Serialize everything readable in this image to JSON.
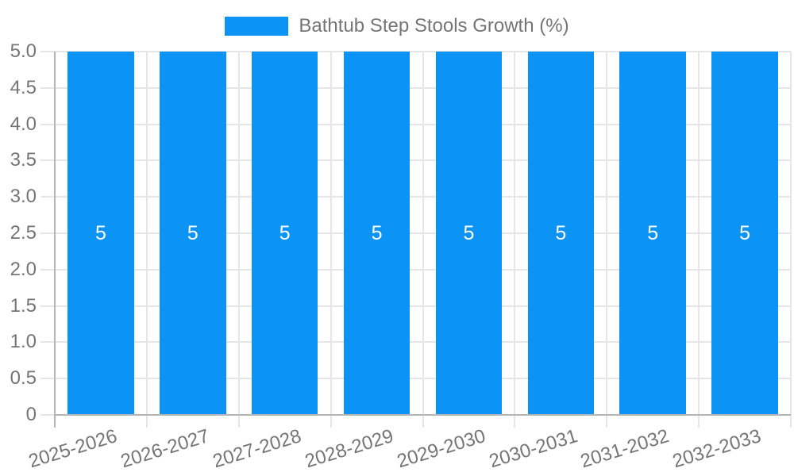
{
  "chart_data": {
    "type": "bar",
    "title": "",
    "legend": {
      "position": "top",
      "label": "Bathtub Step Stools Growth (%)"
    },
    "categories": [
      "2025-2026",
      "2026-2027",
      "2027-2028",
      "2028-2029",
      "2029-2030",
      "2030-2031",
      "2031-2032",
      "2032-2033"
    ],
    "series": [
      {
        "name": "Bathtub Step Stools Growth (%)",
        "values": [
          5,
          5,
          5,
          5,
          5,
          5,
          5,
          5
        ]
      }
    ],
    "value_labels": [
      "5",
      "5",
      "5",
      "5",
      "5",
      "5",
      "5",
      "5"
    ],
    "xlabel": "",
    "ylabel": "",
    "ylim": [
      0,
      5
    ],
    "ytick_step": 0.5,
    "y_tick_labels": [
      "0",
      "0.5",
      "1.0",
      "1.5",
      "2.0",
      "2.5",
      "3.0",
      "3.5",
      "4.0",
      "4.5",
      "5.0"
    ],
    "grid": true,
    "colors": {
      "bar": "#0b94f6",
      "axis": "#b5b5b5",
      "grid": "#e6e6e6",
      "tick_text": "#757575",
      "legend_text": "#757575",
      "value_label": "#ffffff",
      "background": "#ffffff"
    }
  }
}
